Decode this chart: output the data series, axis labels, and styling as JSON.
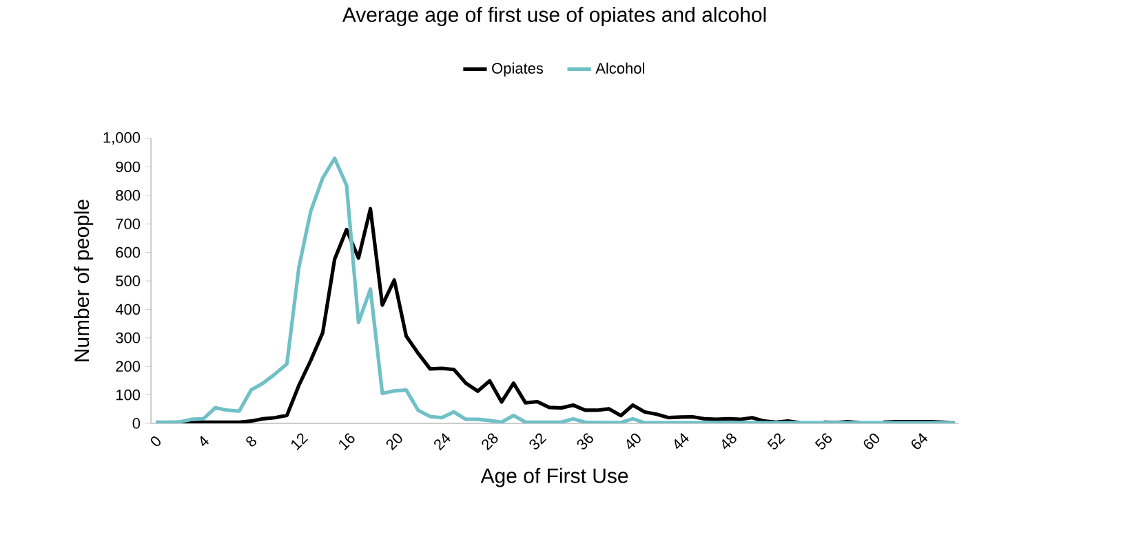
{
  "chart_data": {
    "type": "line",
    "title": "Average age of first use of opiates and alcohol",
    "xlabel": "Age of First Use",
    "ylabel": "Number of people",
    "categories": [
      "0",
      null,
      null,
      null,
      "4",
      null,
      null,
      null,
      "8",
      null,
      null,
      null,
      "12",
      null,
      null,
      null,
      "16",
      null,
      null,
      null,
      "20",
      null,
      null,
      null,
      "24",
      null,
      null,
      null,
      "28",
      null,
      null,
      null,
      "32",
      null,
      null,
      null,
      "36",
      null,
      null,
      null,
      "40",
      null,
      null,
      null,
      "44",
      null,
      null,
      null,
      "48",
      null,
      null,
      null,
      "52",
      null,
      null,
      null,
      "56",
      null,
      null,
      null,
      "60",
      null,
      null,
      null,
      "64",
      null,
      null,
      null
    ],
    "series": [
      {
        "name": "Opiates",
        "color": "#000000",
        "values": [
          null,
          null,
          2,
          2,
          4,
          4,
          4,
          4,
          8,
          16,
          20,
          28,
          133,
          221,
          318,
          576,
          680,
          580,
          753,
          415,
          503,
          306,
          246,
          191,
          193,
          189,
          141,
          113,
          149,
          75,
          141,
          72,
          76,
          56,
          54,
          64,
          46,
          46,
          51,
          27,
          64,
          40,
          32,
          20,
          22,
          23,
          16,
          14,
          16,
          14,
          20,
          8,
          4,
          8,
          2,
          null,
          4,
          2,
          6,
          2,
          null,
          4,
          6,
          6,
          6,
          6,
          4,
          0
        ]
      },
      {
        "name": "Alcohol",
        "color": "#70c0c6",
        "values": [
          4,
          4,
          5,
          14,
          16,
          55,
          46,
          43,
          117,
          141,
          173,
          209,
          547,
          745,
          861,
          930,
          835,
          354,
          471,
          105,
          114,
          117,
          46,
          24,
          20,
          40,
          14,
          14,
          10,
          4,
          28,
          4,
          4,
          4,
          4,
          16,
          4,
          3,
          3,
          3,
          16,
          2,
          2,
          2,
          2,
          2,
          2,
          2,
          2,
          2,
          2,
          2,
          2,
          2,
          2,
          2,
          2,
          2,
          2,
          2,
          2,
          2,
          2,
          2,
          2,
          2,
          2,
          0
        ]
      }
    ],
    "ylim": [
      0,
      1000
    ],
    "yticks": [
      0,
      100,
      200,
      300,
      400,
      500,
      600,
      700,
      800,
      900,
      {
        "value": 1000,
        "label": "1,000"
      }
    ],
    "legend": "top",
    "grid": false
  }
}
